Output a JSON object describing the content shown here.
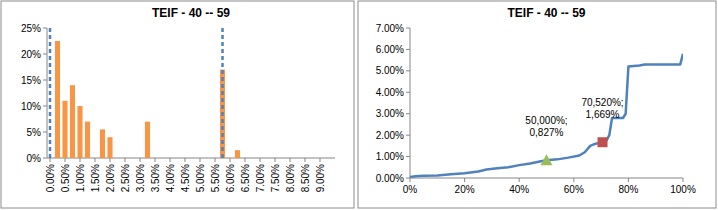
{
  "chart_data": [
    {
      "type": "bar",
      "title": "TEIF - 40 -- 59",
      "x": [
        0.25,
        0.5,
        0.75,
        1.0,
        1.25,
        1.75,
        2.0,
        3.25,
        5.75,
        6.25
      ],
      "values": [
        22.5,
        11,
        14,
        10,
        7,
        5.5,
        4,
        7,
        17,
        1.5
      ],
      "color": "#f79646",
      "xlim": [
        -0.1,
        9.5
      ],
      "xticks": [
        {
          "value": 0,
          "label": "0.00%"
        },
        {
          "value": 0.5,
          "label": "0.50%"
        },
        {
          "value": 1,
          "label": "1.00%"
        },
        {
          "value": 1.5,
          "label": "1.50%"
        },
        {
          "value": 2,
          "label": "2.00%"
        },
        {
          "value": 2.5,
          "label": "2.50%"
        },
        {
          "value": 3,
          "label": "3.00%"
        },
        {
          "value": 3.5,
          "label": "3.50%"
        },
        {
          "value": 4,
          "label": "4.00%"
        },
        {
          "value": 4.5,
          "label": "4.50%"
        },
        {
          "value": 5,
          "label": "5.00%"
        },
        {
          "value": 5.5,
          "label": "5.50%"
        },
        {
          "value": 6,
          "label": "6.00%"
        },
        {
          "value": 6.5,
          "label": "6.50%"
        },
        {
          "value": 7,
          "label": "7.00%"
        },
        {
          "value": 7.5,
          "label": "7.50%"
        },
        {
          "value": 8,
          "label": "8.00%"
        },
        {
          "value": 8.5,
          "label": "8.50%"
        },
        {
          "value": 9,
          "label": "9.00%"
        }
      ],
      "ylim": [
        0,
        25
      ],
      "yticks": [
        {
          "value": 0,
          "label": "0%"
        },
        {
          "value": 5,
          "label": "5%"
        },
        {
          "value": 10,
          "label": "10%"
        },
        {
          "value": 15,
          "label": "15%"
        },
        {
          "value": 20,
          "label": "20%"
        },
        {
          "value": 25,
          "label": "25%"
        }
      ],
      "vlines": [
        {
          "x": 0,
          "color": "#4f81bd",
          "line_style": "dashed"
        },
        {
          "x": 5.75,
          "color": "#4f81bd",
          "line_style": "dashed"
        }
      ],
      "grid": false
    },
    {
      "type": "line",
      "title": "TEIF - 40 -- 59",
      "x": [
        0,
        2,
        5,
        10,
        15,
        20,
        25,
        28,
        32,
        36,
        40,
        44,
        48,
        50,
        54,
        58,
        62,
        64,
        66,
        68,
        70.52,
        72,
        73,
        74,
        78,
        79,
        80,
        84,
        86,
        99,
        100
      ],
      "values": [
        0.05,
        0.08,
        0.1,
        0.12,
        0.18,
        0.22,
        0.3,
        0.4,
        0.45,
        0.5,
        0.6,
        0.68,
        0.78,
        0.827,
        0.87,
        0.95,
        1.05,
        1.2,
        1.5,
        1.6,
        1.669,
        1.75,
        2.0,
        2.8,
        2.8,
        3.0,
        5.2,
        5.25,
        5.3,
        5.3,
        5.8
      ],
      "color": "#4f81bd",
      "xlim": [
        0,
        100
      ],
      "xticks": [
        {
          "value": 0,
          "label": "0%"
        },
        {
          "value": 20,
          "label": "20%"
        },
        {
          "value": 40,
          "label": "40%"
        },
        {
          "value": 60,
          "label": "60%"
        },
        {
          "value": 80,
          "label": "80%"
        },
        {
          "value": 100,
          "label": "100%"
        }
      ],
      "ylim": [
        0,
        7
      ],
      "yticks": [
        {
          "value": 0,
          "label": "0.00%"
        },
        {
          "value": 1,
          "label": "1.00%"
        },
        {
          "value": 2,
          "label": "2.00%"
        },
        {
          "value": 3,
          "label": "3.00%"
        },
        {
          "value": 4,
          "label": "4.00%"
        },
        {
          "value": 5,
          "label": "5.00%"
        },
        {
          "value": 6,
          "label": "6.00%"
        },
        {
          "value": 7,
          "label": "7.00%"
        }
      ],
      "points": [
        {
          "x": 50,
          "y": 0.827,
          "label": "50,000%; 0,827%",
          "marker": "triangle",
          "color": "#9bbb59"
        },
        {
          "x": 70.52,
          "y": 1.669,
          "label": "70,520%; 1,669%",
          "marker": "square",
          "color": "#c0504d"
        }
      ],
      "grid": false
    }
  ]
}
